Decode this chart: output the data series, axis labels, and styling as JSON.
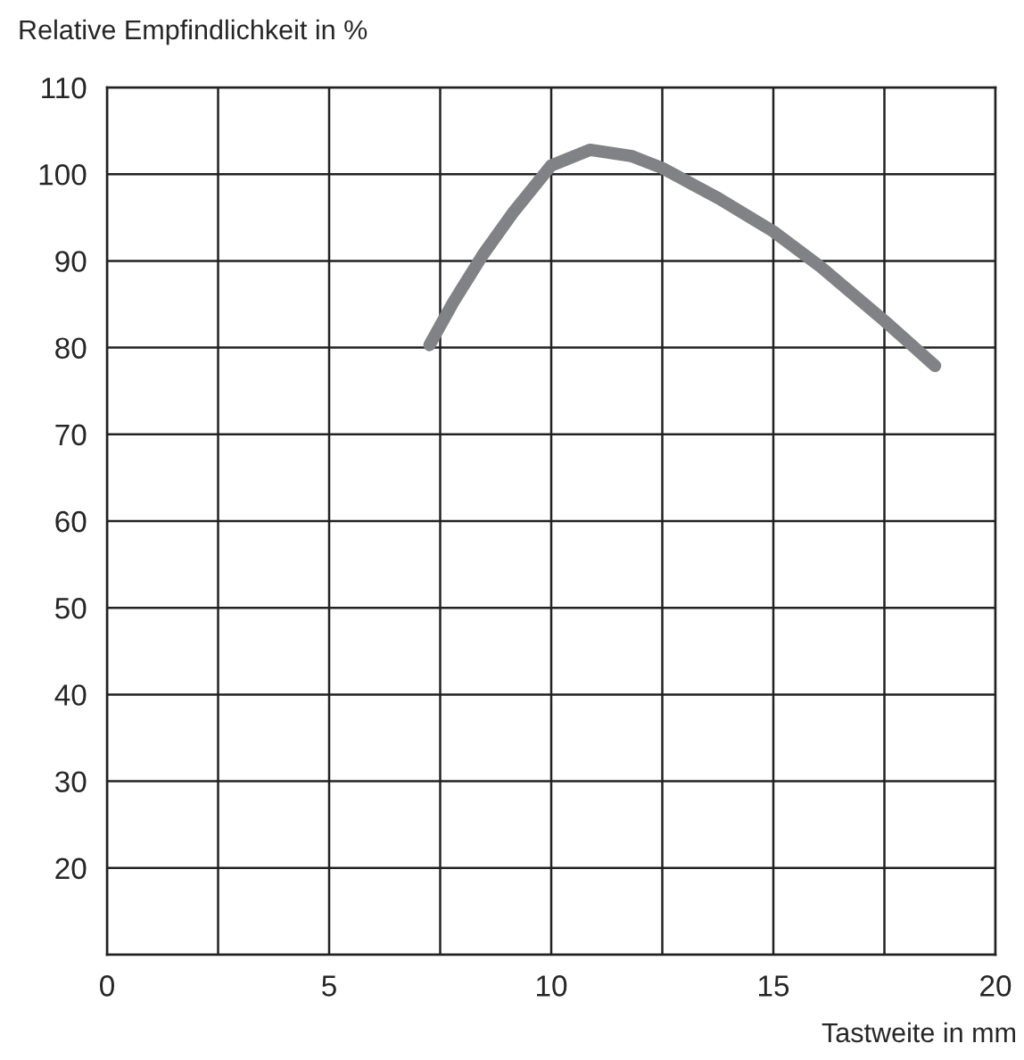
{
  "chart_data": {
    "type": "line",
    "ylabel": "Relative Empfindlichkeit in %",
    "xlabel": "Tastweite in mm",
    "x": [
      7.26,
      7.79,
      8.46,
      9.13,
      10.0,
      10.87,
      11.8,
      12.5,
      13.77,
      15.0,
      16.07,
      17.5,
      18.64
    ],
    "series": [
      {
        "color": "#808285",
        "values": [
          80.3,
          85.2,
          90.7,
          95.5,
          101.0,
          102.8,
          102.1,
          100.7,
          97.2,
          93.4,
          89.3,
          83.1,
          77.9
        ]
      }
    ],
    "xlim": [
      0,
      20
    ],
    "xticks": [
      0,
      {
        "value": 2.5,
        "label": null
      },
      5,
      {
        "value": 7.5,
        "label": null
      },
      10,
      {
        "value": 12.5,
        "label": null
      },
      15,
      {
        "value": 17.5,
        "label": null
      },
      20
    ],
    "ylim": [
      10,
      110
    ],
    "yticks": [
      {
        "value": 10,
        "label": null
      },
      20,
      30,
      40,
      50,
      60,
      70,
      80,
      90,
      100,
      110
    ],
    "grid": true,
    "marker": "none",
    "line_style": "solid",
    "legend": false
  }
}
